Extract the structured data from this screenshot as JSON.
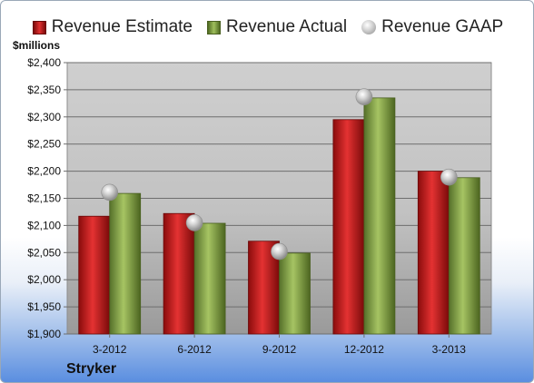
{
  "chart_data": {
    "type": "bar",
    "categories": [
      "3-2012",
      "6-2012",
      "9-2012",
      "12-2012",
      "3-2013"
    ],
    "series": [
      {
        "name": "Revenue Estimate",
        "values": [
          2117,
          2122,
          2071,
          2295,
          2200
        ]
      },
      {
        "name": "Revenue Actual",
        "values": [
          2159,
          2104,
          2049,
          2335,
          2188
        ]
      },
      {
        "name": "Revenue GAAP",
        "values": [
          2161,
          2105,
          2052,
          2337,
          2189
        ]
      }
    ],
    "series_types": [
      "bar",
      "bar",
      "marker"
    ],
    "ylabel": "$millions",
    "ylim": [
      1900,
      2400
    ],
    "yticks": [
      1900,
      1950,
      2000,
      2050,
      2100,
      2150,
      2200,
      2250,
      2300,
      2350,
      2400
    ],
    "ytick_labels": [
      "$1,900",
      "$1,950",
      "$2,000",
      "$2,050",
      "$2,100",
      "$2,150",
      "$2,200",
      "$2,250",
      "$2,300",
      "$2,350",
      "$2,400"
    ],
    "grid": true,
    "legend_position": "top",
    "colors": {
      "estimate": "#c8151b",
      "actual": "#8aaa48",
      "gaap": "#b0b0b0"
    }
  },
  "footer": {
    "company": "Stryker"
  }
}
